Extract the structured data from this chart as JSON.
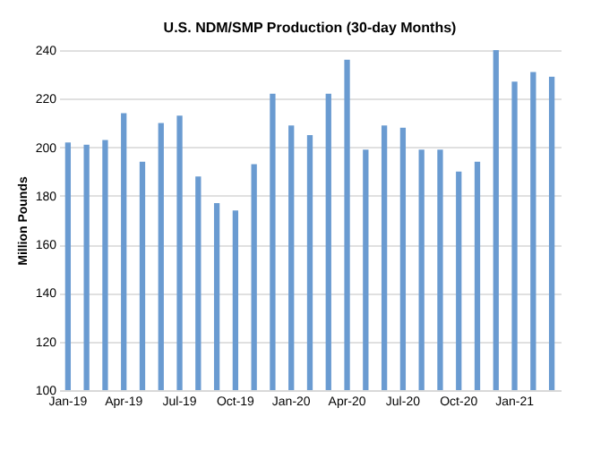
{
  "chart_data": {
    "type": "bar",
    "title": "U.S. NDM/SMP Production (30-day Months)",
    "ylabel": "Million Pounds",
    "categories": [
      "Jan-19",
      null,
      null,
      "Apr-19",
      null,
      null,
      "Jul-19",
      null,
      null,
      "Oct-19",
      null,
      null,
      "Jan-20",
      null,
      null,
      "Apr-20",
      null,
      null,
      "Jul-20",
      null,
      null,
      "Oct-20",
      null,
      null,
      "Jan-21",
      null,
      null
    ],
    "values": [
      202,
      201,
      203,
      214,
      194,
      210,
      213,
      188,
      177,
      174,
      193,
      222,
      209,
      205,
      222,
      236,
      199,
      209,
      208,
      199,
      199,
      190,
      194,
      240,
      227,
      231,
      229
    ],
    "color": "#6a9bd1",
    "ylim": [
      100,
      240
    ],
    "yticks": [
      100,
      120,
      140,
      160,
      180,
      200,
      220,
      240
    ],
    "grid": "y"
  }
}
